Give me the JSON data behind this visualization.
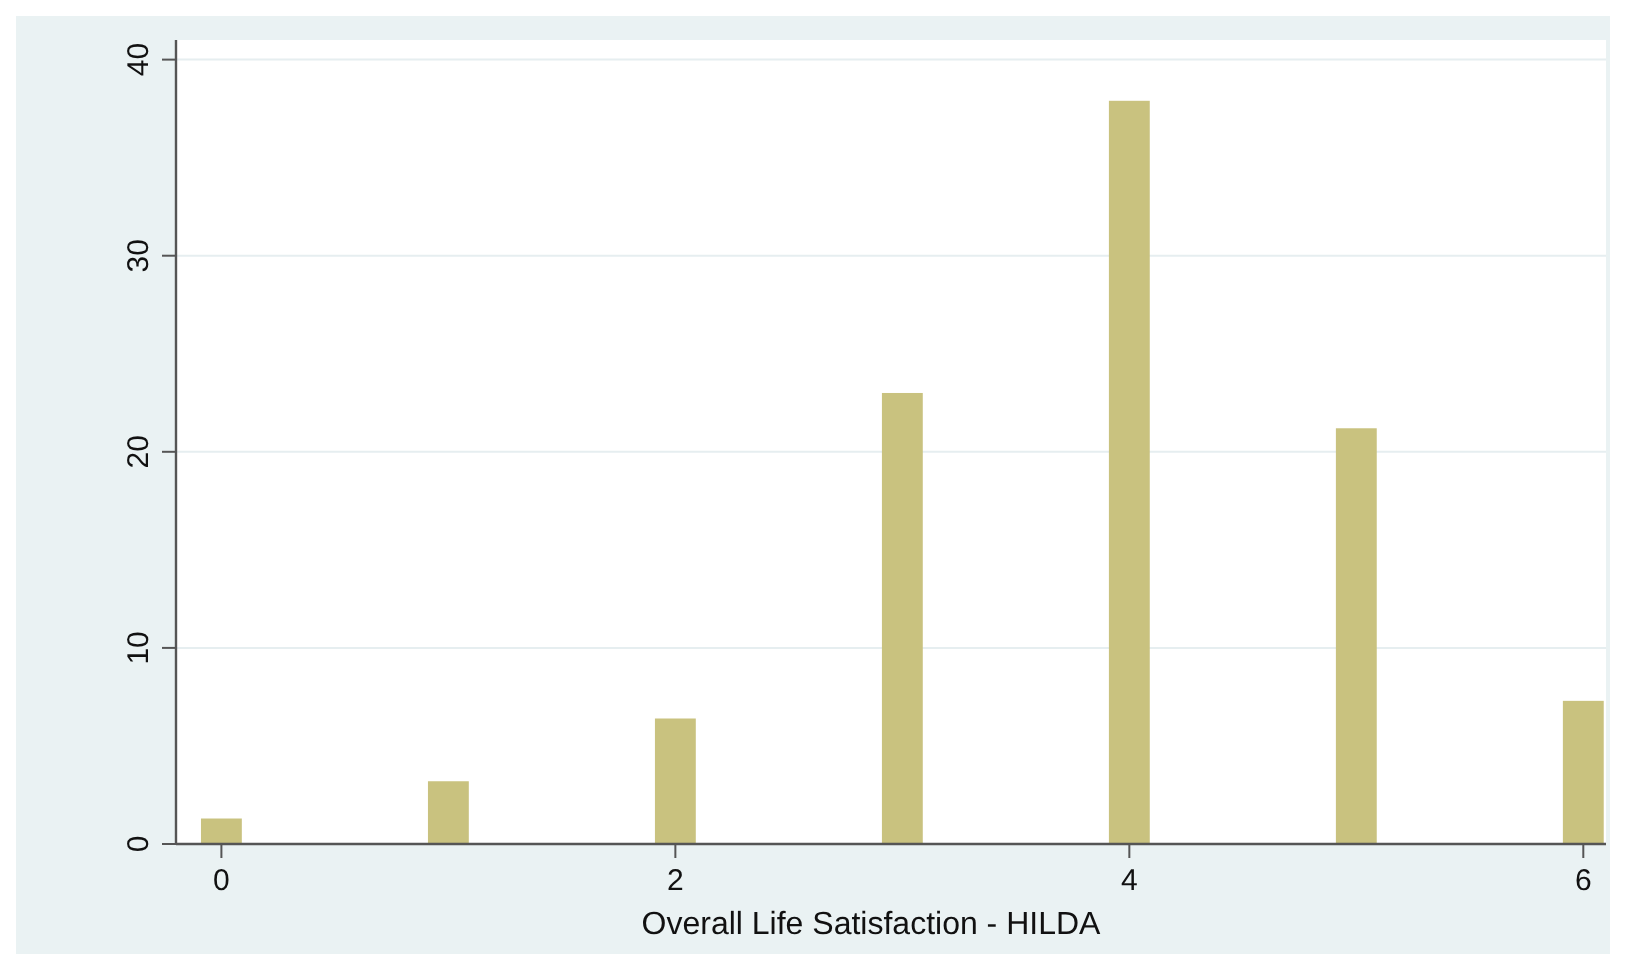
{
  "chart_data": {
    "type": "bar",
    "xlabel": "Overall Life Satisfaction - HILDA",
    "x": [
      0,
      1,
      2,
      3,
      4,
      5,
      6
    ],
    "values": [
      1.3,
      3.2,
      6.4,
      23.0,
      37.9,
      21.2,
      7.3
    ],
    "color": "#c9c27f",
    "xlim": [
      -0.2,
      6.1
    ],
    "xticks": [
      0,
      2,
      4,
      6
    ],
    "ylim": [
      0,
      41
    ],
    "yticks": [
      0,
      10,
      20,
      30,
      40
    ],
    "grid": "y"
  }
}
